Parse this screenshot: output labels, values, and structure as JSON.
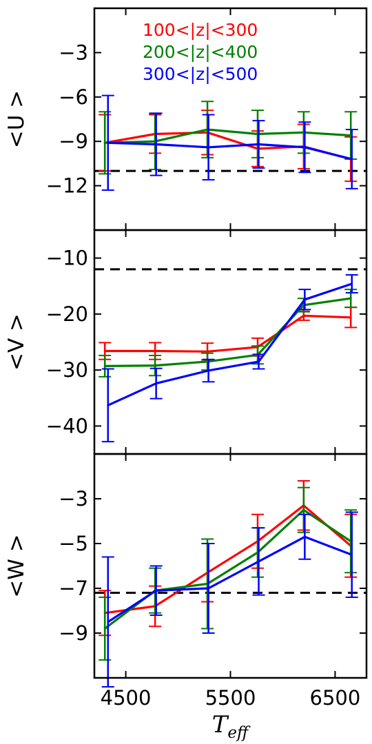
{
  "chart_data": {
    "type": "line",
    "layout": "three vertically stacked panels sharing the x axis",
    "xlabel": "T",
    "xlabel_sub": "eff",
    "xlim": [
      4200,
      6800
    ],
    "xticks": [
      4500,
      5500,
      6500
    ],
    "xtick_labels": [
      "4500",
      "5500",
      "6500"
    ],
    "grid": false,
    "legend": {
      "placement": "top of first panel",
      "entries": [
        {
          "label": "100<|z|<300",
          "color": "#ff0000"
        },
        {
          "label": "200<|z|<400",
          "color": "#008000"
        },
        {
          "label": "300<|z|<500",
          "color": "#0000ff"
        }
      ]
    },
    "panels": [
      {
        "ylabel": "<U >",
        "ylim": [
          -15,
          0
        ],
        "yticks": [
          -3,
          -6,
          -9,
          -12
        ],
        "ytick_labels": [
          "−3",
          "−6",
          "−9",
          "−12"
        ],
        "reference_line": -11,
        "series": [
          {
            "name": "100<|z|<300",
            "color": "#ff0000",
            "x": [
              4300,
              4780,
              5280,
              5760,
              6200,
              6650
            ],
            "y": [
              -9.1,
              -8.5,
              -8.4,
              -9.5,
              -9.35,
              -10.2
            ],
            "err": [
              1.9,
              1.3,
              1.5,
              1.2,
              1.5,
              1.5
            ]
          },
          {
            "name": "200<|z|<400",
            "color": "#008000",
            "x": [
              4300,
              4780,
              5280,
              5760,
              6200,
              6650
            ],
            "y": [
              -9.1,
              -9.0,
              -8.2,
              -8.5,
              -8.4,
              -8.6
            ],
            "err": [
              2.1,
              1.9,
              1.9,
              1.6,
              1.4,
              1.6
            ]
          },
          {
            "name": "300<|z|<500",
            "color": "#0000ff",
            "x": [
              4330,
              4790,
              5290,
              5770,
              6210,
              6660
            ],
            "y": [
              -9.1,
              -9.2,
              -9.4,
              -9.2,
              -9.4,
              -10.2
            ],
            "err": [
              3.2,
              2.1,
              2.2,
              1.6,
              1.7,
              2.0
            ]
          }
        ]
      },
      {
        "ylabel": "<V >",
        "ylim": [
          -45,
          -5
        ],
        "yticks": [
          -10,
          -20,
          -30,
          -40
        ],
        "ytick_labels": [
          "−10",
          "−20",
          "−30",
          "−40"
        ],
        "reference_line": -12,
        "series": [
          {
            "name": "100<|z|<300",
            "color": "#ff0000",
            "x": [
              4300,
              4780,
              5280,
              5760,
              6200,
              6650
            ],
            "y": [
              -26.6,
              -26.6,
              -26.7,
              -25.9,
              -20.3,
              -20.6
            ],
            "err": [
              1.5,
              1.5,
              1.5,
              1.6,
              0.8,
              1.8
            ]
          },
          {
            "name": "200<|z|<400",
            "color": "#008000",
            "x": [
              4300,
              4780,
              5280,
              5760,
              6200,
              6650
            ],
            "y": [
              -29.3,
              -29.2,
              -28.5,
              -27.3,
              -18.4,
              -17.2
            ],
            "err": [
              1.9,
              1.8,
              1.5,
              1.6,
              1.2,
              1.6
            ]
          },
          {
            "name": "300<|z|<500",
            "color": "#0000ff",
            "x": [
              4330,
              4790,
              5290,
              5770,
              6210,
              6660
            ],
            "y": [
              -36.3,
              -32.4,
              -30.1,
              -28.5,
              -17.4,
              -14.6
            ],
            "err": [
              6.5,
              2.7,
              2.0,
              1.3,
              1.8,
              1.6
            ]
          }
        ]
      },
      {
        "ylabel": "<W >",
        "ylim": [
          -11,
          -1
        ],
        "yticks": [
          -3,
          -5,
          -7,
          -9
        ],
        "ytick_labels": [
          "−3",
          "−5",
          "−7",
          "−9"
        ],
        "reference_line": -7.2,
        "series": [
          {
            "name": "100<|z|<300",
            "color": "#ff0000",
            "x": [
              4300,
              4780,
              5280,
              5760,
              6200,
              6650
            ],
            "y": [
              -8.1,
              -7.8,
              -6.3,
              -4.9,
              -3.3,
              -5.1
            ],
            "err": [
              1.0,
              0.9,
              1.3,
              1.2,
              1.1,
              1.4
            ]
          },
          {
            "name": "200<|z|<400",
            "color": "#008000",
            "x": [
              4300,
              4780,
              5280,
              5760,
              6200,
              6650
            ],
            "y": [
              -8.8,
              -7.1,
              -6.8,
              -5.4,
              -3.5,
              -4.9
            ],
            "err": [
              1.4,
              1.0,
              2.0,
              1.1,
              1.0,
              1.4
            ]
          },
          {
            "name": "300<|z|<500",
            "color": "#0000ff",
            "x": [
              4330,
              4790,
              5290,
              5770,
              6210,
              6660
            ],
            "y": [
              -8.5,
              -7.1,
              -7.0,
              -5.8,
              -4.7,
              -5.5
            ],
            "err": [
              2.9,
              1.1,
              2.0,
              1.5,
              1.0,
              1.9
            ]
          }
        ]
      }
    ]
  }
}
